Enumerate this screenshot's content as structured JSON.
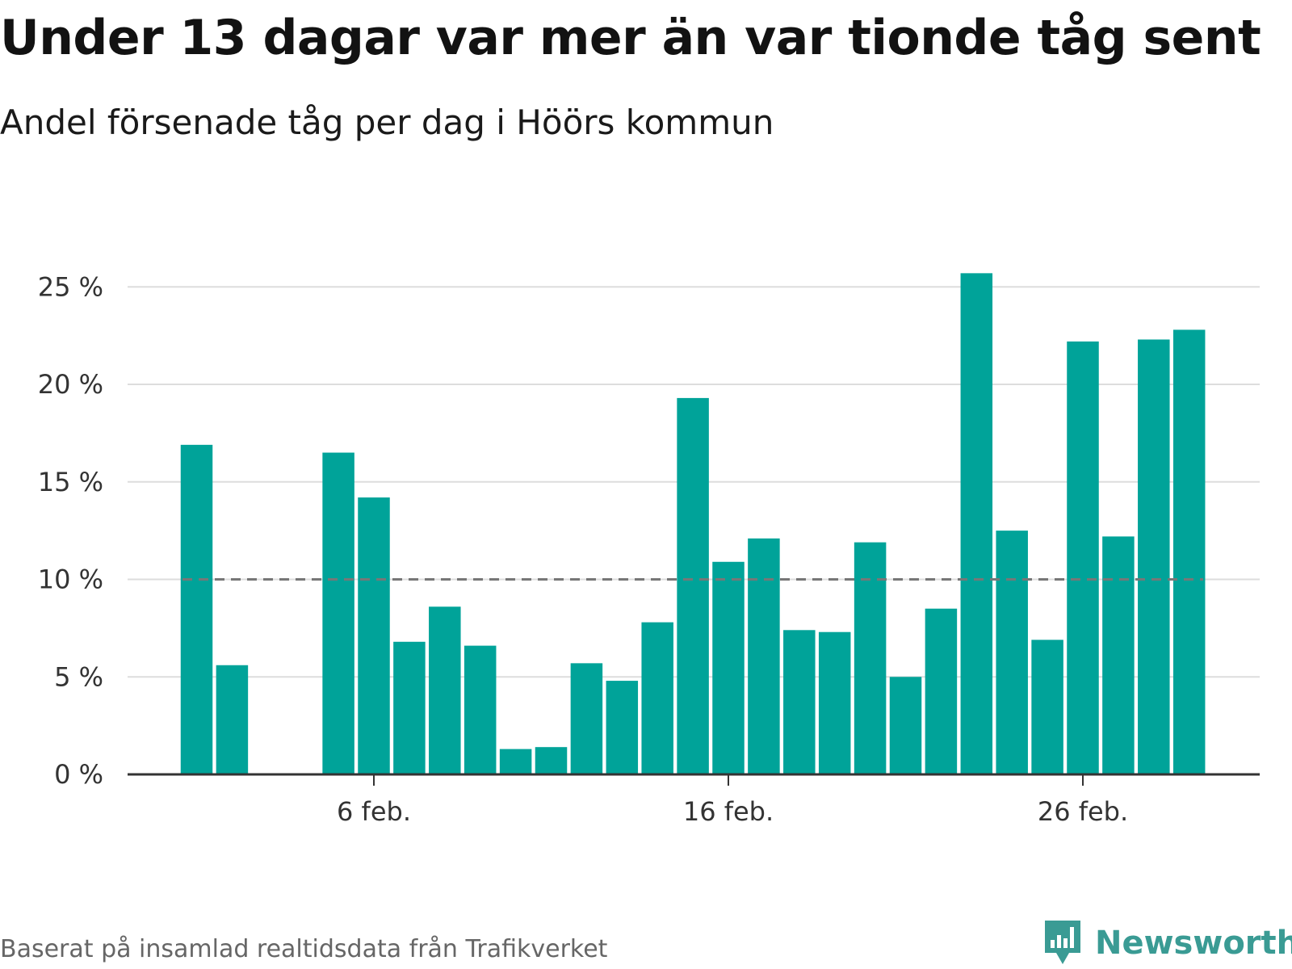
{
  "header": {
    "title": "Under 13 dagar var mer än var tionde tåg sent",
    "subtitle": "Andel försenade tåg per dag i Höörs kommun"
  },
  "footer": {
    "source": "Baserat på insamlad realtidsdata från Trafikverket",
    "brand": "Newsworthy"
  },
  "colors": {
    "bar": "#00a399",
    "grid": "#dddddd",
    "reference_line": "#777777",
    "axis": "#333333",
    "brand": "#3a9b94"
  },
  "chart_data": {
    "type": "bar",
    "x": [
      "2024-02-01",
      "2024-02-02",
      "2024-02-03",
      "2024-02-04",
      "2024-02-05",
      "2024-02-06",
      "2024-02-07",
      "2024-02-08",
      "2024-02-09",
      "2024-02-10",
      "2024-02-11",
      "2024-02-12",
      "2024-02-13",
      "2024-02-14",
      "2024-02-15",
      "2024-02-16",
      "2024-02-17",
      "2024-02-18",
      "2024-02-19",
      "2024-02-20",
      "2024-02-21",
      "2024-02-22",
      "2024-02-23",
      "2024-02-24",
      "2024-02-25",
      "2024-02-26",
      "2024-02-27",
      "2024-02-28",
      "2024-02-29"
    ],
    "values": [
      16.9,
      5.6,
      null,
      null,
      16.5,
      14.2,
      6.8,
      8.6,
      6.6,
      1.3,
      1.4,
      5.7,
      4.8,
      7.8,
      19.3,
      10.9,
      12.1,
      7.4,
      7.3,
      11.9,
      5.0,
      8.5,
      25.7,
      12.5,
      6.9,
      22.2,
      12.2,
      22.3,
      22.8
    ],
    "x_ticks": [
      {
        "date": "2024-02-06",
        "label": "6 feb."
      },
      {
        "date": "2024-02-16",
        "label": "16 feb."
      },
      {
        "date": "2024-02-26",
        "label": "26 feb."
      }
    ],
    "y_ticks": [
      {
        "value": 0,
        "label": "0 %"
      },
      {
        "value": 5,
        "label": "5 %"
      },
      {
        "value": 10,
        "label": "10 %"
      },
      {
        "value": 15,
        "label": "15 %"
      },
      {
        "value": 20,
        "label": "20 %"
      },
      {
        "value": 25,
        "label": "25 %"
      }
    ],
    "ylim": [
      0,
      27
    ],
    "reference_line": 10,
    "grid": true,
    "legend": false
  }
}
